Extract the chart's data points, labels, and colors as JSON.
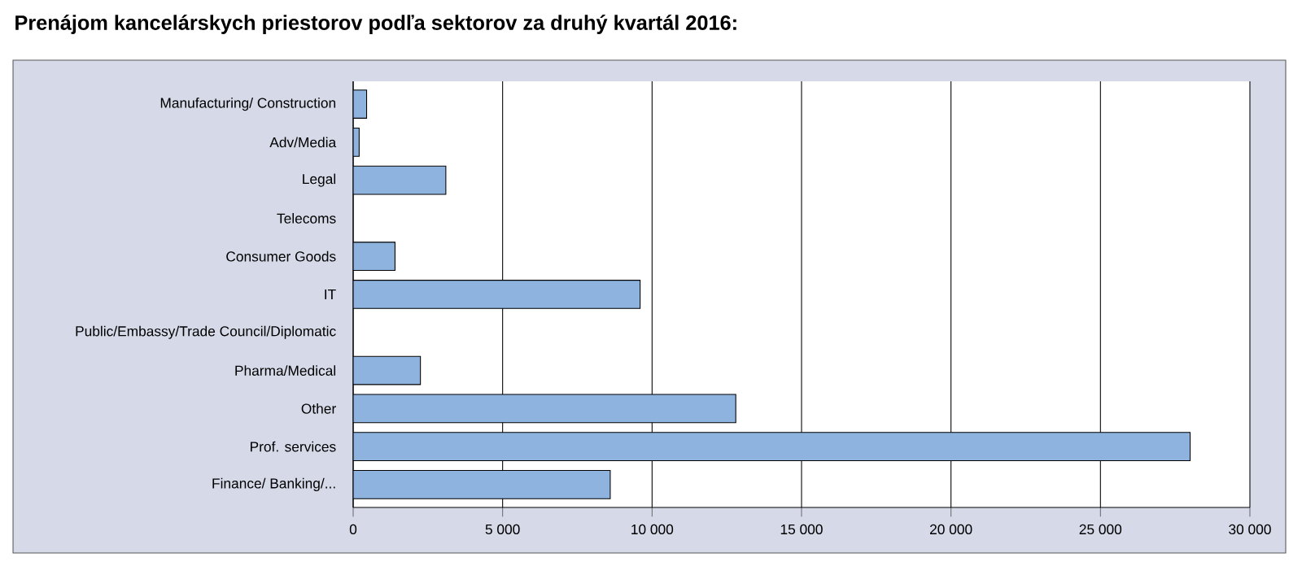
{
  "chart_data": {
    "type": "bar",
    "orientation": "horizontal",
    "title": "Prenájom kancelárskych priestorov podľa sektorov za druhý kvartál 2016:",
    "categories": [
      "Manufacturing/ Construction",
      "Adv/Media",
      "Legal",
      "Telecoms",
      "Consumer Goods",
      "IT",
      "Public/Embassy/Trade Council/Diplomatic",
      "Pharma/Medical",
      "Other",
      "Prof. services",
      "Finance/ Banking/..."
    ],
    "values": [
      450,
      200,
      3100,
      null,
      1400,
      9600,
      null,
      2250,
      12800,
      28000,
      8600
    ],
    "color": "#8db3de",
    "xlim": [
      0,
      30000
    ],
    "xticks": [
      0,
      {
        "value": 5000,
        "label": "5 000"
      },
      {
        "value": 10000,
        "label": "10 000"
      },
      {
        "value": 15000,
        "label": "15 000"
      },
      {
        "value": 20000,
        "label": "20 000"
      },
      {
        "value": 25000,
        "label": "25 000"
      },
      {
        "value": 30000,
        "label": "30 000"
      }
    ],
    "grid": "x"
  }
}
